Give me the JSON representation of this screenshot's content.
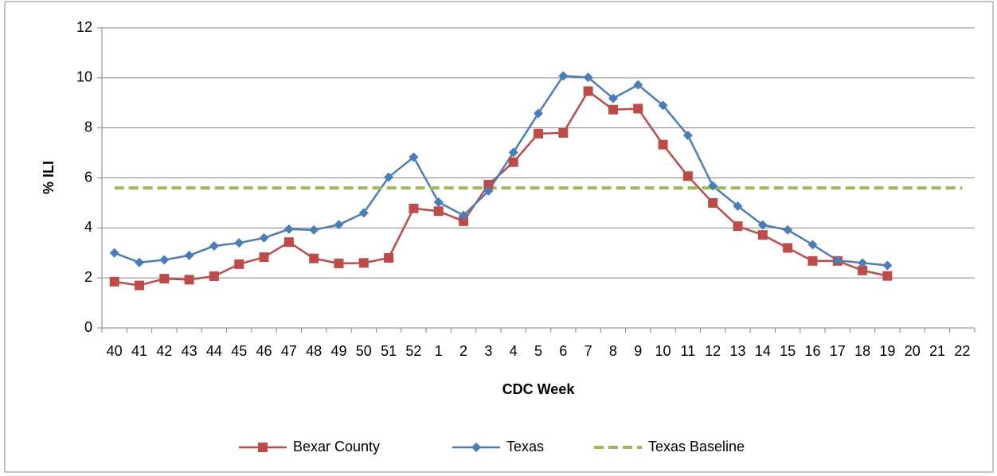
{
  "chart_data": {
    "type": "line",
    "x_label": "CDC Week",
    "y_label": "% ILI",
    "categories": [
      "40",
      "41",
      "42",
      "43",
      "44",
      "45",
      "46",
      "47",
      "48",
      "49",
      "50",
      "51",
      "52",
      "1",
      "2",
      "3",
      "4",
      "5",
      "6",
      "7",
      "8",
      "9",
      "10",
      "11",
      "12",
      "13",
      "14",
      "15",
      "16",
      "17",
      "18",
      "19",
      "20",
      "21",
      "22"
    ],
    "series": [
      {
        "name": "Bexar County",
        "color": "#be4b48",
        "marker": "square",
        "dash": false,
        "values": [
          1.85,
          1.7,
          1.97,
          1.93,
          2.07,
          2.55,
          2.83,
          3.43,
          2.78,
          2.58,
          2.6,
          2.8,
          4.78,
          4.67,
          4.27,
          5.73,
          6.63,
          7.77,
          7.8,
          9.47,
          8.73,
          8.77,
          7.33,
          6.07,
          5.0,
          4.07,
          3.72,
          3.2,
          2.68,
          2.68,
          2.3,
          2.08,
          null,
          null,
          null
        ]
      },
      {
        "name": "Texas",
        "color": "#4a7ebb",
        "marker": "diamond",
        "dash": false,
        "values": [
          3.0,
          2.62,
          2.72,
          2.9,
          3.28,
          3.4,
          3.6,
          3.95,
          3.92,
          4.13,
          4.6,
          6.03,
          6.83,
          5.03,
          4.5,
          5.48,
          7.02,
          8.58,
          10.08,
          10.02,
          9.18,
          9.72,
          8.9,
          7.7,
          5.68,
          4.87,
          4.12,
          3.92,
          3.33,
          2.7,
          2.6,
          2.5,
          null,
          null,
          null
        ]
      },
      {
        "name": "Texas Baseline",
        "color": "#9bbb59",
        "marker": "none",
        "dash": true,
        "values": [
          5.6,
          5.6,
          5.6,
          5.6,
          5.6,
          5.6,
          5.6,
          5.6,
          5.6,
          5.6,
          5.6,
          5.6,
          5.6,
          5.6,
          5.6,
          5.6,
          5.6,
          5.6,
          5.6,
          5.6,
          5.6,
          5.6,
          5.6,
          5.6,
          5.6,
          5.6,
          5.6,
          5.6,
          5.6,
          5.6,
          5.6,
          5.6,
          5.6,
          5.6,
          5.6
        ]
      }
    ],
    "ylim": [
      0,
      12
    ],
    "yticks": [
      0,
      2,
      4,
      6,
      8,
      10,
      12
    ],
    "grid": true,
    "legend": "bottom"
  }
}
